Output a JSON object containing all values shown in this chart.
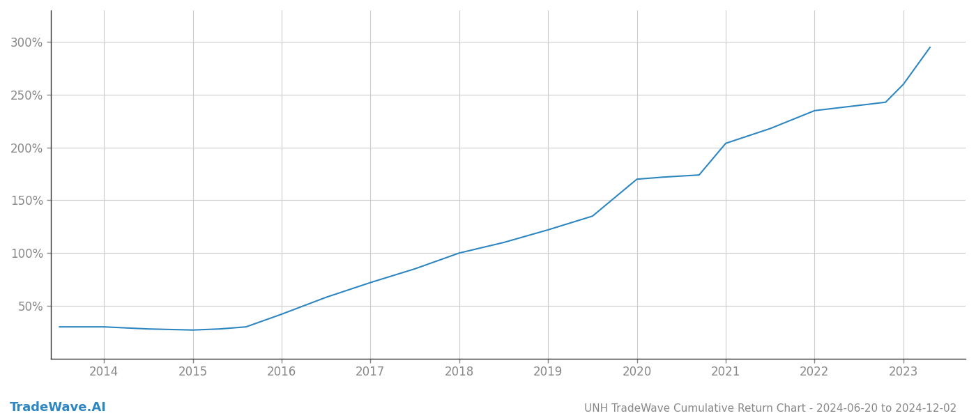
{
  "title": "UNH TradeWave Cumulative Return Chart - 2024-06-20 to 2024-12-02",
  "watermark": "TradeWave.AI",
  "line_color": "#2e86c1",
  "background_color": "#ffffff",
  "grid_color": "#cccccc",
  "x_years": [
    2013.5,
    2014.0,
    2014.5,
    2015.0,
    2015.3,
    2015.6,
    2016.0,
    2016.5,
    2017.0,
    2017.5,
    2018.0,
    2018.5,
    2019.0,
    2019.5,
    2020.0,
    2020.3,
    2020.7,
    2021.0,
    2021.5,
    2022.0,
    2022.5,
    2022.8,
    2023.0,
    2023.3
  ],
  "y_values": [
    30,
    30,
    28,
    27,
    28,
    30,
    42,
    58,
    72,
    85,
    100,
    110,
    122,
    135,
    170,
    172,
    174,
    204,
    218,
    235,
    240,
    243,
    260,
    295
  ],
  "ytick_labels": [
    "50%",
    "100%",
    "150%",
    "200%",
    "250%",
    "300%"
  ],
  "ytick_values": [
    50,
    100,
    150,
    200,
    250,
    300
  ],
  "xtick_labels": [
    "2014",
    "2015",
    "2016",
    "2017",
    "2018",
    "2019",
    "2020",
    "2021",
    "2022",
    "2023"
  ],
  "xtick_values": [
    2014,
    2015,
    2016,
    2017,
    2018,
    2019,
    2020,
    2021,
    2022,
    2023
  ],
  "xlim": [
    2013.4,
    2023.7
  ],
  "ylim": [
    0,
    330
  ],
  "line_width": 1.5,
  "title_fontsize": 11,
  "tick_fontsize": 12,
  "watermark_fontsize": 13,
  "axis_color": "#555555",
  "tick_color": "#888888",
  "spine_color": "#333333"
}
